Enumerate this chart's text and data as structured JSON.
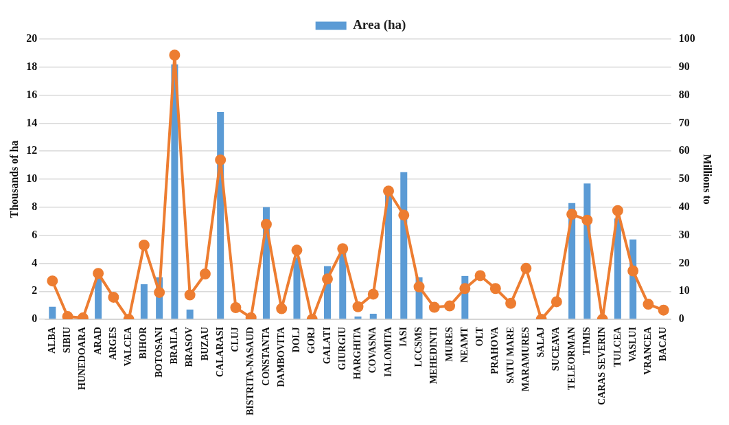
{
  "chart_data": {
    "type": "bar",
    "categories": [
      "ALBA",
      "SIBIU",
      "HUNEDOARA",
      "ARAD",
      "ARGES",
      "VALCEA",
      "BIHOR",
      "BOTOSANI",
      "BRAILA",
      "BRASOV",
      "BUZAU",
      "CALARASI",
      "CLUJ",
      "BISTRITA-NASAUD",
      "CONSTANTA",
      "DAMBOVITA",
      "DOLJ",
      "GORJ",
      "GALATI",
      "GIURGIU",
      "HARGHITA",
      "COVASNA",
      "IALOMITA",
      "IASI",
      "LCCSMS",
      "MEHEDINTI",
      "MURES",
      "NEAMT",
      "OLT",
      "PRAHOVA",
      "SATU MARE",
      "MARAMURES",
      "SALAJ",
      "SUCEAVA",
      "TELEORMAN",
      "TIMIS",
      "CARAS SEVERIN",
      "TULCEA",
      "VASLUI",
      "VRANCEA",
      "BACAU"
    ],
    "series": [
      {
        "name": "Area (ha)",
        "color": "#5b9bd5",
        "values": [
          0.9,
          0,
          0,
          3.0,
          null,
          0,
          2.5,
          3.0,
          18.2,
          0.7,
          null,
          14.8,
          null,
          0,
          8.0,
          null,
          4.4,
          0,
          3.8,
          4.8,
          0.2,
          0.4,
          8.9,
          10.5,
          3.0,
          null,
          null,
          3.1,
          null,
          null,
          null,
          0,
          0,
          null,
          8.3,
          9.7,
          0,
          7.2,
          5.7,
          null,
          null
        ]
      },
      {
        "type": "line",
        "axis": "y2",
        "color": "#ed7d31",
        "values": [
          13.7,
          1,
          0.5,
          16.4,
          7.9,
          0,
          26.5,
          9.6,
          94.3,
          8.7,
          16.2,
          56.9,
          4.2,
          0.6,
          33.9,
          3.8,
          24.7,
          0,
          14.4,
          25.2,
          4.5,
          9.0,
          45.8,
          37.2,
          11.6,
          4.3,
          4.8,
          11.0,
          15.6,
          11.0,
          5.7,
          18.2,
          0,
          6.3,
          37.5,
          35.4,
          0,
          38.8,
          17.3,
          5.4,
          3.3
        ]
      }
    ],
    "ylabel": "Thousands of ha",
    "y2label": "Millions to",
    "ylim": [
      0,
      20
    ],
    "yticks": [
      0,
      2,
      4,
      6,
      8,
      10,
      12,
      14,
      16,
      18,
      20
    ],
    "y2lim": [
      0,
      100
    ],
    "y2ticks": [
      0,
      10,
      20,
      30,
      40,
      50,
      60,
      70,
      80,
      90,
      100
    ],
    "grid": "y",
    "legend": "top",
    "marker": "circle",
    "line_style": "solid"
  }
}
